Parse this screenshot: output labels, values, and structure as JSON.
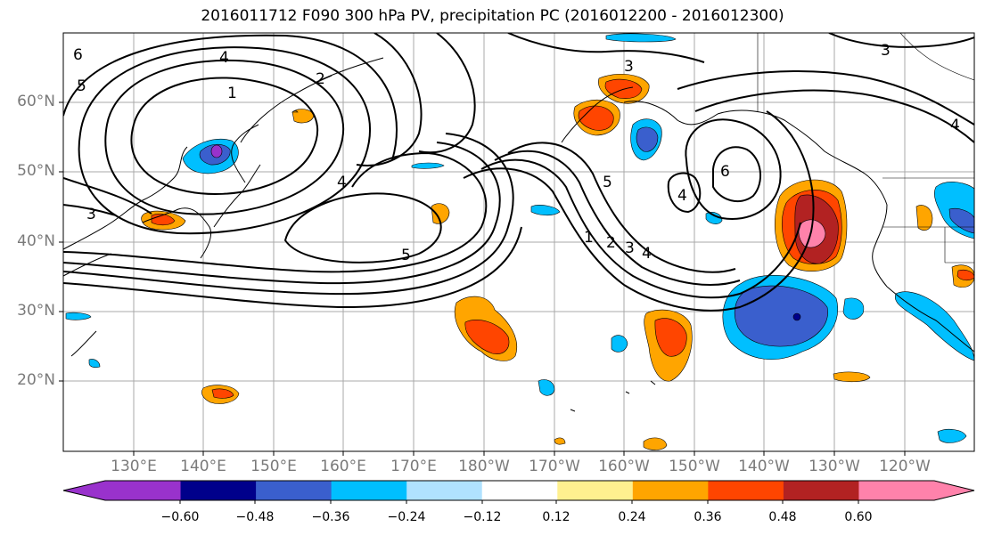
{
  "title": "2016011712 F090 300 hPa PV, precipitation PC (2016012200 - 2016012300)",
  "map": {
    "lon_labels": [
      "130°E",
      "140°E",
      "150°E",
      "160°E",
      "170°E",
      "180°W",
      "170°W",
      "160°W",
      "150°W",
      "140°W",
      "130°W",
      "120°W"
    ],
    "lat_labels": [
      "60°N",
      "50°N",
      "40°N",
      "30°N",
      "20°N"
    ],
    "contour_labels": [
      "6",
      "5",
      "4",
      "2",
      "1",
      "3",
      "3",
      "4",
      "5",
      "5",
      "1",
      "2",
      "3",
      "4",
      "6",
      "4",
      "3",
      "4"
    ],
    "coastline_color": "#000000",
    "grid_color": "#a8a8a8",
    "contour_color": "#000000"
  },
  "colorbar": {
    "colors": [
      "#9932cc",
      "#00008b",
      "#3a5fcd",
      "#00bfff",
      "#b0e2ff",
      "#ffffff",
      "#fff08f",
      "#ffa500",
      "#ff4500",
      "#b22222",
      "#ff82ab"
    ],
    "extend_min_color": "#9932cc",
    "extend_max_color": "#ff82ab",
    "tick_labels": [
      "−0.60",
      "−0.48",
      "−0.36",
      "−0.24",
      "−0.12",
      "0.12",
      "0.24",
      "0.36",
      "0.48",
      "0.60"
    ]
  }
}
